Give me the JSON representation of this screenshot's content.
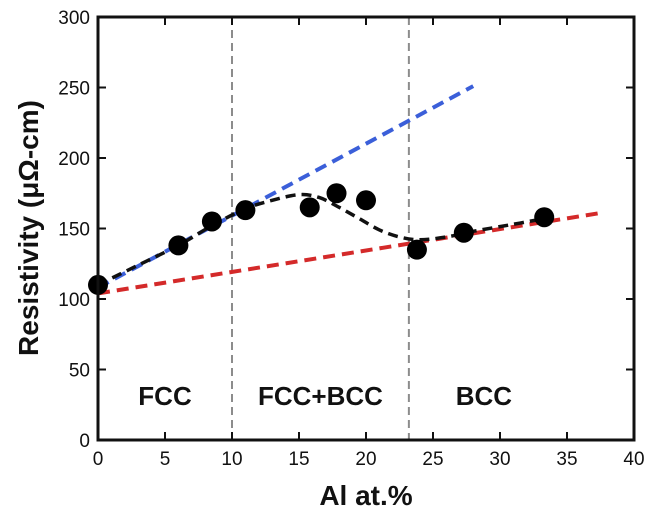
{
  "chart_data": {
    "type": "scatter",
    "xlabel": "Al at.%",
    "ylabel": "Resistivity (μΩ-cm)",
    "xlim": [
      0,
      40
    ],
    "ylim": [
      0,
      300
    ],
    "xticks": [
      0,
      5,
      10,
      15,
      20,
      25,
      30,
      35,
      40
    ],
    "yticks": [
      0,
      50,
      100,
      150,
      200,
      250,
      300
    ],
    "xtick_labels": [
      "0",
      "5",
      "10",
      "15",
      "20",
      "25",
      "30",
      "35",
      "40"
    ],
    "ytick_labels": [
      "0",
      "50",
      "100",
      "150",
      "200",
      "250",
      "300"
    ],
    "grid": false,
    "legend": "none",
    "points": [
      {
        "x": 0,
        "y": 110
      },
      {
        "x": 6,
        "y": 138
      },
      {
        "x": 8.5,
        "y": 155
      },
      {
        "x": 11,
        "y": 163
      },
      {
        "x": 15.8,
        "y": 165
      },
      {
        "x": 17.8,
        "y": 175
      },
      {
        "x": 20,
        "y": 170
      },
      {
        "x": 23.8,
        "y": 135
      },
      {
        "x": 27.3,
        "y": 147
      },
      {
        "x": 33.3,
        "y": 158
      }
    ],
    "trend_lines": [
      {
        "color": "#3b5fd9",
        "style": "dashed",
        "x": [
          0,
          28
        ],
        "y": [
          108,
          251
        ]
      },
      {
        "color": "#d42a2a",
        "style": "dashed",
        "x": [
          0,
          37.5
        ],
        "y": [
          104,
          161
        ]
      }
    ],
    "fit_curve": {
      "color": "#111111",
      "style": "dashed",
      "x": [
        0,
        3,
        6,
        8.5,
        11,
        13,
        15,
        16.5,
        18,
        19.5,
        21,
        22.5,
        24,
        26,
        28,
        31,
        33.3
      ],
      "y": [
        110,
        124,
        138,
        152,
        164,
        170,
        174,
        172,
        165,
        157,
        149,
        144,
        142,
        144,
        148,
        153,
        157
      ]
    },
    "phase_boundaries": [
      {
        "x": 10,
        "color": "#8c8c8c",
        "style": "dashed"
      },
      {
        "x": 23.2,
        "color": "#8c8c8c",
        "style": "dashed"
      }
    ],
    "regions": [
      {
        "label": "FCC",
        "x_center": 5,
        "y": 25
      },
      {
        "label": "FCC+BCC",
        "x_center": 16.6,
        "y": 25
      },
      {
        "label": "BCC",
        "x_center": 28.8,
        "y": 25
      }
    ],
    "colors": {
      "marker": "#000000",
      "axis": "#111111"
    }
  }
}
